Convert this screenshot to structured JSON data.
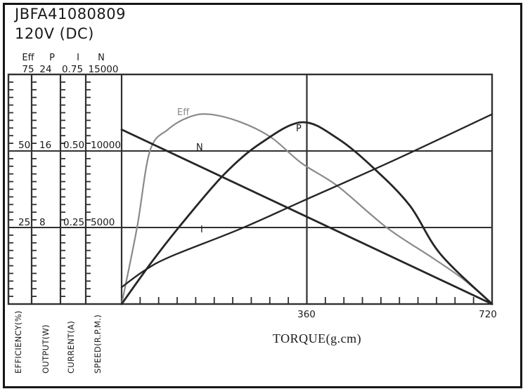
{
  "title": "JBFA41080809",
  "subtitle": "120V (DC)",
  "chart_data": {
    "type": "line",
    "xlabel": "TORQUE(g.cm)",
    "x_axis": {
      "min": 0,
      "max": 720,
      "major_tick_labels": [
        "360",
        "720"
      ],
      "minor_tick_step": 36,
      "grid_at": [
        360
      ]
    },
    "y_axes": [
      {
        "symbol": "Eff",
        "label": "EFFICIENCY(%)",
        "max": 75,
        "tick_labels": [
          "75",
          "50",
          "25"
        ]
      },
      {
        "symbol": "P",
        "label": "OUTPUT(W)",
        "max": 24,
        "tick_labels": [
          "24",
          "16",
          "8"
        ]
      },
      {
        "symbol": "I",
        "label": "CURRENT(A)",
        "max": 0.75,
        "tick_labels": [
          "0.75",
          "0.50",
          "0.25"
        ]
      },
      {
        "symbol": "N",
        "label": "SPEED(R.P.M.)",
        "max": 15000,
        "tick_labels": [
          "15000",
          "10000",
          "5000"
        ]
      }
    ],
    "grid": "major-on",
    "legend_position": "inline-curve-labels",
    "series": [
      {
        "name": "Eff",
        "axis": "Eff",
        "color": "#8a8a8a",
        "unit": "%",
        "points": [
          [
            0,
            0
          ],
          [
            30,
            25
          ],
          [
            55,
            50
          ],
          [
            90,
            57
          ],
          [
            130,
            61
          ],
          [
            170,
            62
          ],
          [
            230,
            59.5
          ],
          [
            290,
            54.5
          ],
          [
            350,
            46
          ],
          [
            420,
            38.5
          ],
          [
            515,
            25
          ],
          [
            605,
            15
          ],
          [
            665,
            8
          ],
          [
            720,
            0
          ]
        ]
      },
      {
        "name": "P",
        "axis": "P",
        "color": "#262626",
        "unit": "W",
        "points": [
          [
            0,
            0
          ],
          [
            60,
            4.5
          ],
          [
            120,
            8.6
          ],
          [
            200,
            13.6
          ],
          [
            270,
            16.8
          ],
          [
            350,
            19
          ],
          [
            420,
            17.3
          ],
          [
            490,
            14.2
          ],
          [
            560,
            10.3
          ],
          [
            620,
            5.2
          ],
          [
            720,
            0
          ]
        ]
      },
      {
        "name": "I",
        "axis": "I",
        "color": "#262626",
        "unit": "A",
        "points": [
          [
            0,
            0.055
          ],
          [
            45,
            0.11
          ],
          [
            95,
            0.155
          ],
          [
            230,
            0.245
          ],
          [
            350,
            0.335
          ],
          [
            530,
            0.47
          ],
          [
            720,
            0.62
          ]
        ]
      },
      {
        "name": "N",
        "axis": "N",
        "color": "#262626",
        "unit": "R.P.M.",
        "points": [
          [
            0,
            11400
          ],
          [
            720,
            0
          ]
        ]
      }
    ]
  }
}
